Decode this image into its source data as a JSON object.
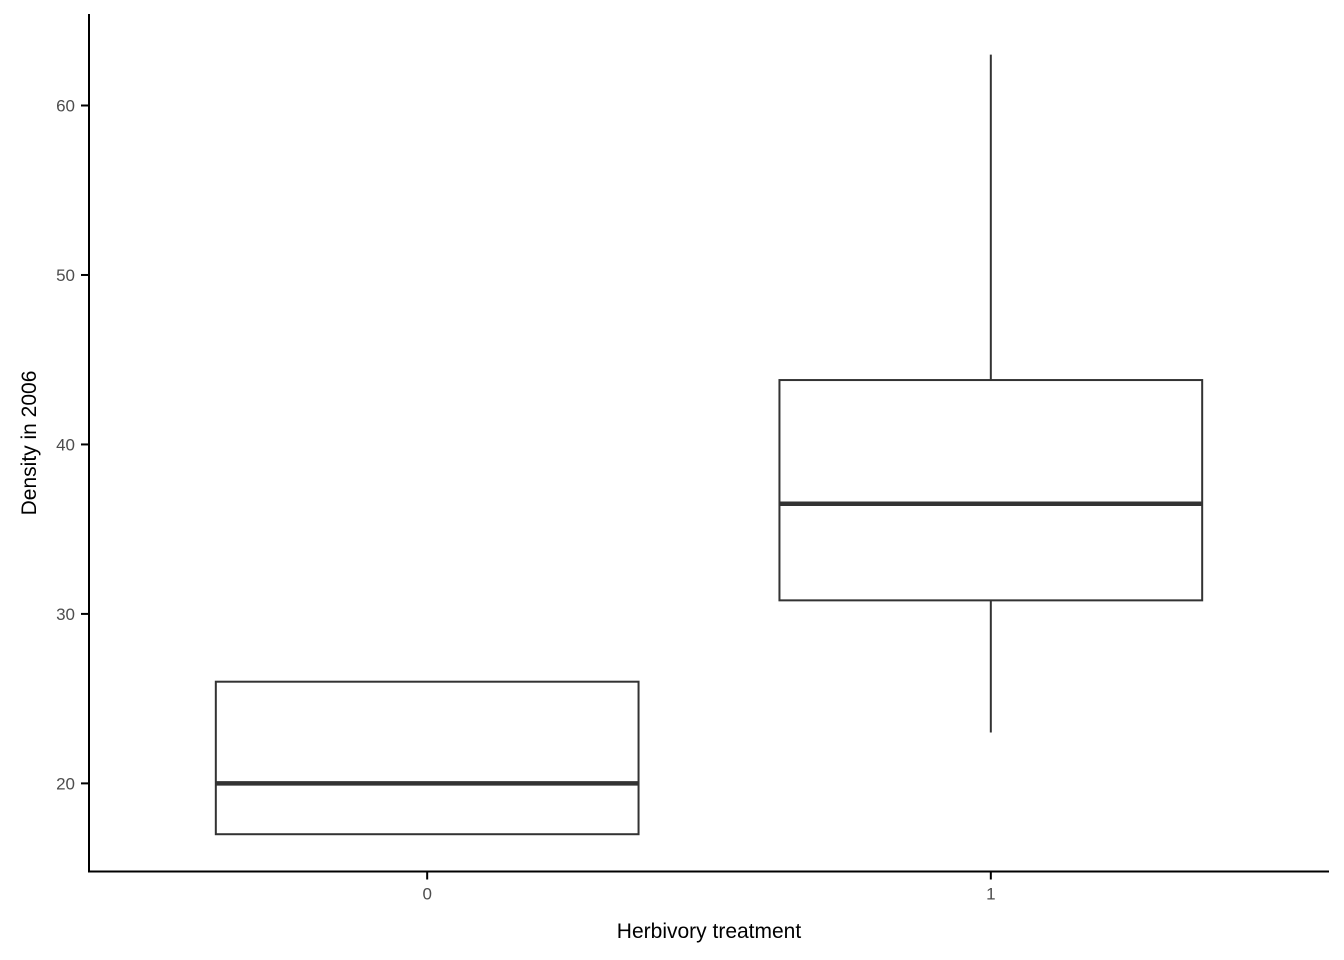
{
  "chart_data": {
    "type": "boxplot",
    "xlabel": "Herbivory treatment",
    "ylabel": "Density in 2006",
    "categories": [
      "0",
      "1"
    ],
    "y_ticks": [
      20,
      30,
      40,
      50,
      60
    ],
    "ylim": [
      14.8,
      65.4
    ],
    "grid": false,
    "legend": false,
    "boxes": [
      {
        "category": "0",
        "whisker_low": 17,
        "q1": 17,
        "median": 20,
        "q3": 26,
        "whisker_high": 26,
        "outliers": []
      },
      {
        "category": "1",
        "whisker_low": 23,
        "q1": 30.8,
        "median": 36.5,
        "q3": 43.8,
        "whisker_high": 63,
        "outliers": []
      }
    ],
    "colors": {
      "box_stroke": "#333333",
      "box_fill": "#ffffff",
      "axis_line": "#000000",
      "tick_label": "#4d4d4d",
      "axis_title": "#000000",
      "background": "#ffffff"
    }
  }
}
